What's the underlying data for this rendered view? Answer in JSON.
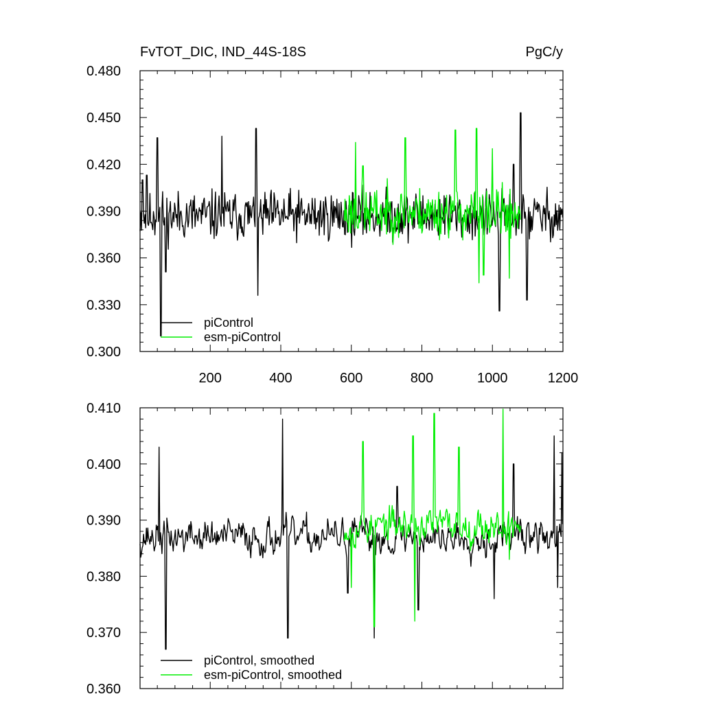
{
  "chart_data": [
    {
      "type": "line",
      "title": "FvTOT_DIC, IND_44S-18S",
      "units": "PgC/y",
      "xlim": [
        1,
        1200
      ],
      "ylim": [
        0.3,
        0.48
      ],
      "xticks": [
        200,
        400,
        600,
        800,
        1000,
        1200
      ],
      "xtick_labels": [
        "200",
        "400",
        "600",
        "800",
        "1000",
        "1200"
      ],
      "yticks": [
        0.3,
        0.33,
        0.36,
        0.39,
        0.42,
        0.45,
        0.48
      ],
      "ytick_labels": [
        "0.300",
        "0.330",
        "0.360",
        "0.390",
        "0.420",
        "0.450",
        "0.480"
      ],
      "grid": false,
      "legend_position": "bottom-left",
      "series": [
        {
          "name": "piControl",
          "color": "#000000",
          "x_range": [
            1,
            1200
          ],
          "mean": 0.387,
          "amplitude": 0.0235,
          "seed": 11,
          "anchors": [
            [
              8,
              0.41
            ],
            [
              20,
              0.413
            ],
            [
              50,
              0.437
            ],
            [
              60,
              0.31
            ],
            [
              74,
              0.351
            ],
            [
              233,
              0.438
            ],
            [
              330,
              0.443
            ],
            [
              335,
              0.336
            ],
            [
              1020,
              0.326
            ],
            [
              1060,
              0.42
            ],
            [
              1080,
              0.453
            ],
            [
              1098,
              0.333
            ]
          ]
        },
        {
          "name": "esm-piControl",
          "color": "#00ee00",
          "x_range": [
            580,
            1080
          ],
          "mean": 0.389,
          "amplitude": 0.0235,
          "seed": 23,
          "anchors": [
            [
              612,
              0.434
            ],
            [
              633,
              0.419
            ],
            [
              753,
              0.437
            ],
            [
              895,
              0.442
            ],
            [
              955,
              0.443
            ],
            [
              962,
              0.344
            ],
            [
              975,
              0.349
            ],
            [
              1000,
              0.43
            ],
            [
              1048,
              0.347
            ]
          ]
        }
      ]
    },
    {
      "type": "line",
      "title": "",
      "xlim": [
        1,
        1200
      ],
      "ylim": [
        0.36,
        0.41
      ],
      "xticks": [
        200,
        400,
        600,
        800,
        1000,
        1200
      ],
      "yticks": [
        0.36,
        0.37,
        0.38,
        0.39,
        0.4,
        0.41
      ],
      "ytick_labels": [
        "0.360",
        "0.370",
        "0.380",
        "0.390",
        "0.400",
        "0.410"
      ],
      "grid": false,
      "legend_position": "bottom-left",
      "series": [
        {
          "name": "piControl, smoothed",
          "color": "#000000",
          "x_range": [
            1,
            1200
          ],
          "mean": 0.387,
          "amplitude": 0.0058,
          "seed": 37,
          "anchors": [
            [
              55,
              0.403
            ],
            [
              74,
              0.367
            ],
            [
              405,
              0.408
            ],
            [
              420,
              0.369
            ],
            [
              590,
              0.377
            ],
            [
              665,
              0.369
            ],
            [
              730,
              0.396
            ],
            [
              790,
              0.374
            ],
            [
              1005,
              0.376
            ],
            [
              1060,
              0.4
            ],
            [
              1175,
              0.405
            ],
            [
              1185,
              0.378
            ],
            [
              1197,
              0.402
            ]
          ]
        },
        {
          "name": "esm-piControl, smoothed",
          "color": "#00ee00",
          "x_range": [
            580,
            1080
          ],
          "mean": 0.389,
          "amplitude": 0.0058,
          "seed": 53,
          "anchors": [
            [
              600,
              0.378
            ],
            [
              633,
              0.404
            ],
            [
              665,
              0.371
            ],
            [
              775,
              0.405
            ],
            [
              780,
              0.372
            ],
            [
              835,
              0.409
            ],
            [
              905,
              0.403
            ],
            [
              1030,
              0.41
            ],
            [
              1048,
              0.383
            ]
          ]
        }
      ]
    }
  ]
}
